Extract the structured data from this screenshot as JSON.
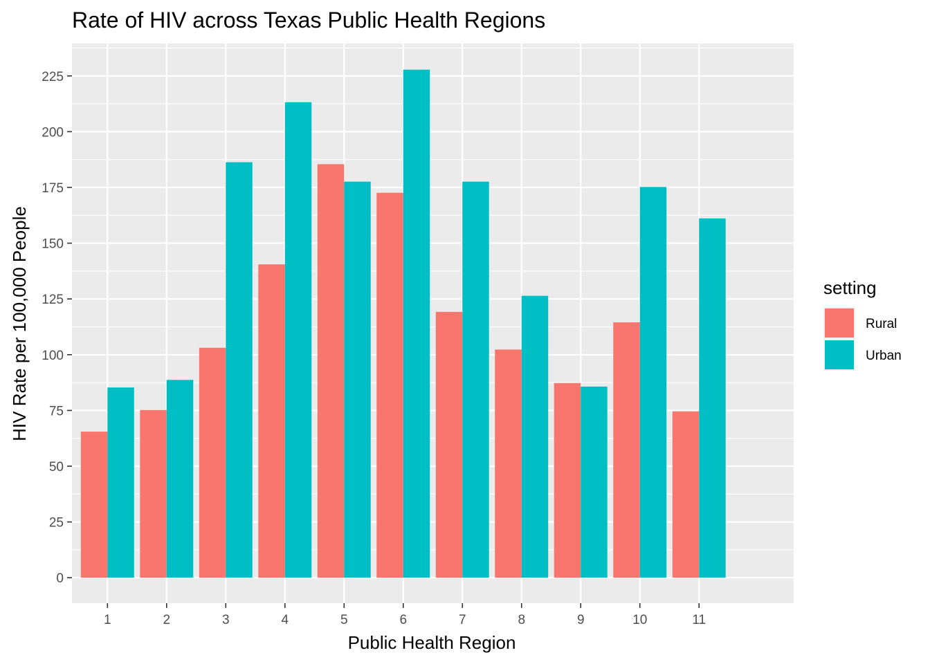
{
  "chart_data": {
    "type": "bar",
    "title": "Rate of HIV across Texas Public Health Regions",
    "xlabel": "Public Health Region",
    "ylabel": "HIV Rate per 100,000 People",
    "categories": [
      "1",
      "2",
      "3",
      "4",
      "5",
      "6",
      "7",
      "8",
      "9",
      "10",
      "11"
    ],
    "series": [
      {
        "name": "Rural",
        "color": "#F8766D",
        "values": [
          65.5,
          75.2,
          103.1,
          140.5,
          185.4,
          172.6,
          119.2,
          102.3,
          87.3,
          114.5,
          74.6
        ]
      },
      {
        "name": "Urban",
        "color": "#00BFC4",
        "values": [
          85.3,
          88.7,
          186.3,
          213.2,
          177.6,
          227.8,
          177.6,
          126.4,
          85.7,
          175.2,
          161.1
        ]
      }
    ],
    "ylim": [
      -11.4,
      239.5
    ],
    "yticks": [
      0,
      25,
      50,
      75,
      100,
      125,
      150,
      175,
      200,
      225
    ],
    "grid": true,
    "panel_background": "#EBEBEB",
    "grid_color": "#FFFFFF",
    "legend": {
      "title": "setting",
      "placement": "right"
    }
  }
}
